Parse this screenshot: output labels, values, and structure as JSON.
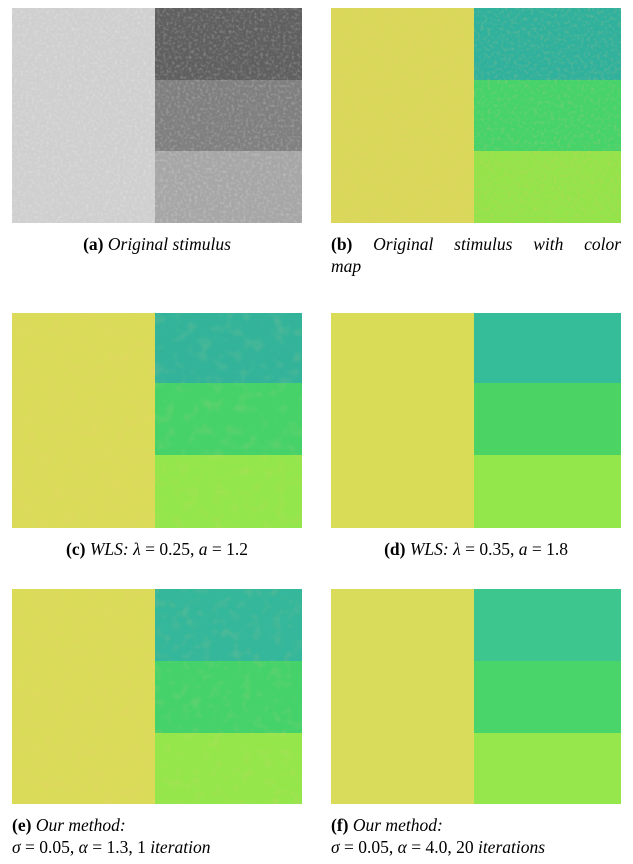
{
  "panels": [
    {
      "id": "a",
      "label": "(a)",
      "caption": "Original stimulus",
      "colors": {
        "left": "#cfcfcf",
        "top_right": "#5f5f5f",
        "mid_right": "#7f7f7f",
        "bottom_right": "#a6a6a6"
      }
    },
    {
      "id": "b",
      "label": "(b)",
      "caption_line1": "Original stimulus with color",
      "caption_line2": "map",
      "colors": {
        "left": "#d9d85a",
        "top_right": "#2fb19d",
        "mid_right": "#45d36a",
        "bottom_right": "#93e34a"
      }
    },
    {
      "id": "c",
      "label": "(c)",
      "method": "WLS:",
      "param1_sym": "λ",
      "param1_val": "0.25",
      "param2_sym": "a",
      "param2_val": "1.2",
      "colors": {
        "left": "#dadb58",
        "top_right": "#33b49a",
        "mid_right": "#46d269",
        "bottom_right": "#93e64b"
      }
    },
    {
      "id": "d",
      "label": "(d)",
      "method": "WLS:",
      "param1_sym": "λ",
      "param1_val": "0.35",
      "param2_sym": "a",
      "param2_val": "1.8",
      "colors": {
        "left": "#d9dc57",
        "top_right": "#35bd9a",
        "mid_right": "#4bd464",
        "bottom_right": "#94e74a"
      }
    },
    {
      "id": "e",
      "label": "(e)",
      "method": "Our method:",
      "sigma_sym": "σ",
      "sigma_val": "0.05",
      "alpha_sym": "α",
      "alpha_val": "1.3",
      "iter_val": "1",
      "iter_word": "iteration",
      "colors": {
        "left": "#dadb58",
        "top_right": "#34b79a",
        "mid_right": "#46d26a",
        "bottom_right": "#94e64b"
      }
    },
    {
      "id": "f",
      "label": "(f)",
      "method": "Our method:",
      "sigma_sym": "σ",
      "sigma_val": "0.05",
      "alpha_sym": "α",
      "alpha_val": "4.0",
      "iter_val": "20",
      "iter_word": "iterations",
      "colors": {
        "left": "#d8dc5a",
        "top_right": "#3ec68f",
        "mid_right": "#4ad56a",
        "bottom_right": "#95e74b"
      }
    }
  ]
}
